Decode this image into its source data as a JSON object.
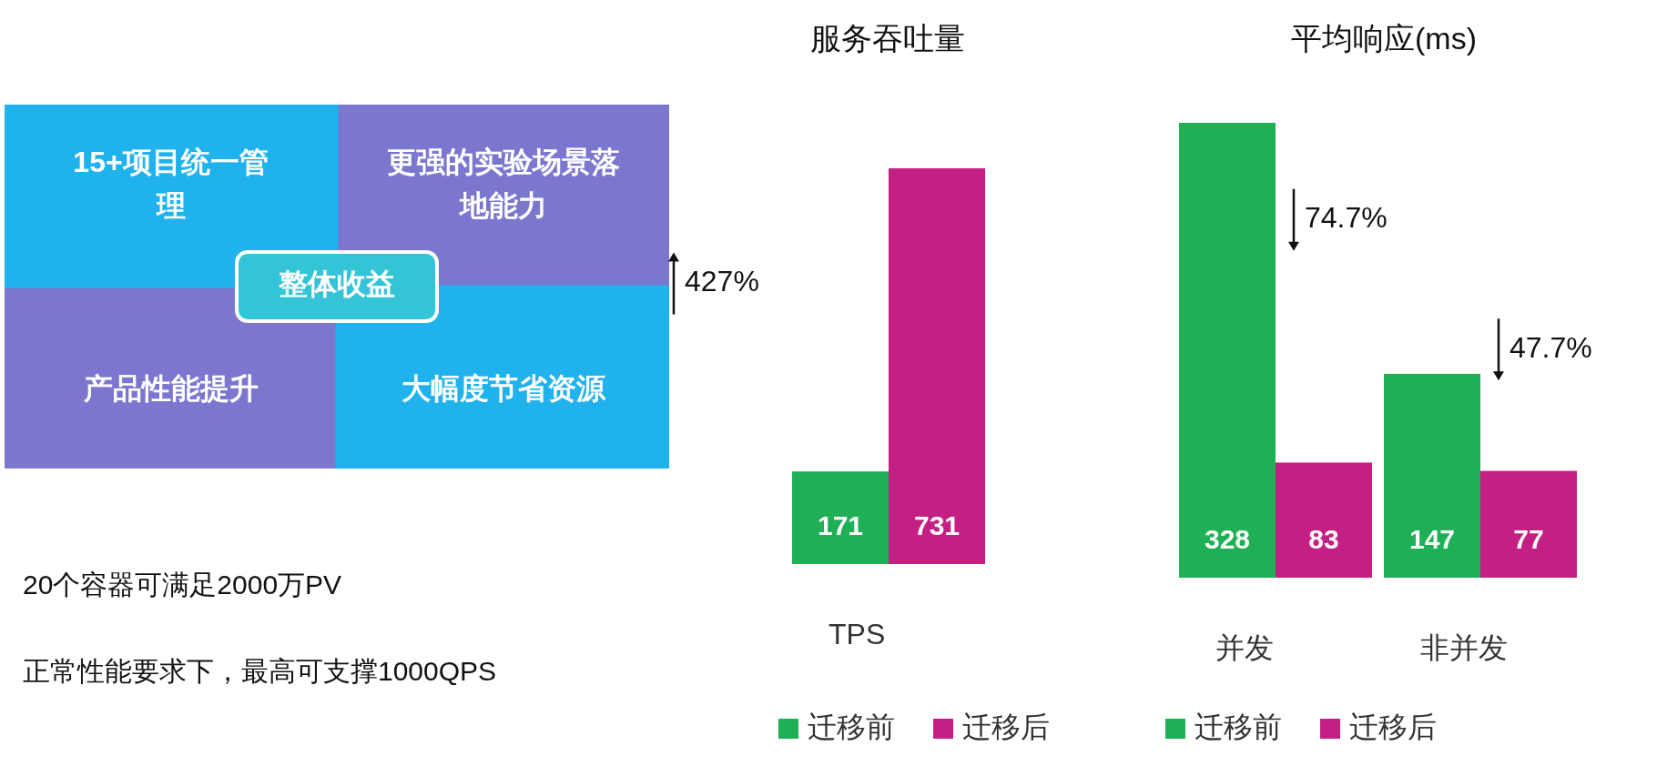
{
  "chart_data": [
    {
      "type": "other",
      "title": "整体收益",
      "annotations": [
        "15+项目统一管理",
        "更强的实验场景落地能力",
        "产品性能提升",
        "大幅度节省资源",
        "20个容器可满足2000万PV",
        "正常性能要求下，最高可支撑1000QPS"
      ]
    },
    {
      "type": "bar",
      "title": "服务吞吐量",
      "categories": [
        "TPS"
      ],
      "series": [
        {
          "name": "迁移前",
          "color": "#1faf55",
          "values": [
            171
          ]
        },
        {
          "name": "迁移后",
          "color": "#c41f85",
          "values": [
            731
          ]
        }
      ],
      "data_labels": true,
      "legend": "bottom",
      "annotations": [
        "427%"
      ]
    },
    {
      "type": "bar",
      "title": "平均响应(ms)",
      "categories": [
        "并发",
        "非并发"
      ],
      "series": [
        {
          "name": "迁移前",
          "color": "#1faf55",
          "values": [
            328,
            147
          ]
        },
        {
          "name": "迁移后",
          "color": "#c41f85",
          "values": [
            83,
            77
          ]
        }
      ],
      "data_labels": true,
      "legend": "bottom",
      "annotations": [
        "74.7%",
        "47.7%"
      ]
    }
  ]
}
